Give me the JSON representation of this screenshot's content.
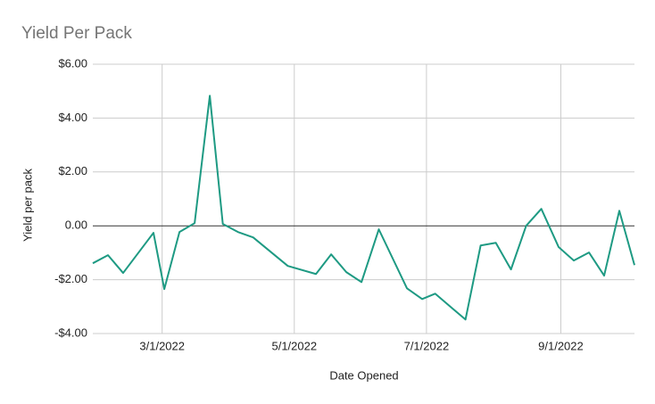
{
  "chart_data": {
    "type": "line",
    "title": "Yield Per Pack",
    "x_label": "Date Opened",
    "y_label": "Yield per pack",
    "color": "#1e9a83",
    "grid": true,
    "x": [
      "2022-01-28",
      "2022-02-04",
      "2022-02-11",
      "2022-02-25",
      "2022-03-02",
      "2022-03-09",
      "2022-03-16",
      "2022-03-23",
      "2022-03-29",
      "2022-04-05",
      "2022-04-12",
      "2022-04-28",
      "2022-05-11",
      "2022-05-18",
      "2022-05-25",
      "2022-06-01",
      "2022-06-09",
      "2022-06-22",
      "2022-06-29",
      "2022-07-05",
      "2022-07-19",
      "2022-07-26",
      "2022-08-02",
      "2022-08-09",
      "2022-08-16",
      "2022-08-23",
      "2022-08-31",
      "2022-09-07",
      "2022-09-14",
      "2022-09-21",
      "2022-09-28",
      "2022-10-05"
    ],
    "values": [
      -1.39,
      -1.09,
      -1.75,
      -0.26,
      -2.35,
      -0.23,
      0.1,
      4.83,
      0.07,
      -0.23,
      -0.43,
      -1.49,
      -1.79,
      -1.06,
      -1.72,
      -2.09,
      -0.13,
      -2.32,
      -2.72,
      -2.52,
      -3.48,
      -0.73,
      -0.63,
      -1.62,
      0.0,
      0.63,
      -0.79,
      -1.29,
      -0.99,
      -1.85,
      0.56,
      -1.46
    ],
    "xlim": [
      "2022-01-28",
      "2022-10-05"
    ],
    "xticks": [
      {
        "value": "2022-03-01",
        "label": "3/1/2022"
      },
      {
        "value": "2022-05-01",
        "label": "5/1/2022"
      },
      {
        "value": "2022-07-01",
        "label": "7/1/2022"
      },
      {
        "value": "2022-09-01",
        "label": "9/1/2022"
      }
    ],
    "ylim": [
      -4,
      6
    ],
    "yticks": [
      {
        "value": -4,
        "label": "-$4.00"
      },
      {
        "value": -2,
        "label": "-$2.00"
      },
      {
        "value": 0,
        "label": "0.00"
      },
      {
        "value": 2,
        "label": "$2.00"
      },
      {
        "value": 4,
        "label": "$4.00"
      },
      {
        "value": 6,
        "label": "$6.00"
      }
    ]
  }
}
